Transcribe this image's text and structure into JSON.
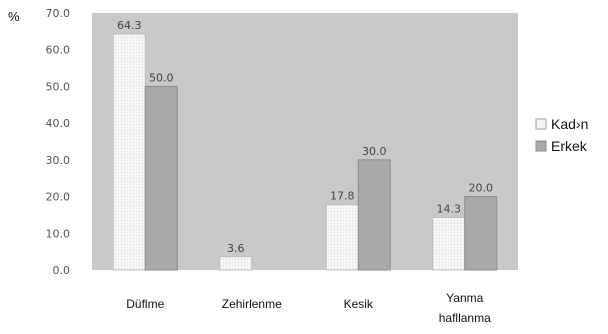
{
  "chart_data": {
    "type": "bar",
    "unit_label": "%",
    "categories": [
      "Düflme",
      "Zehirlenme",
      "Kesik",
      "Yanma\nhafllanma"
    ],
    "series": [
      {
        "name": "Kad›n",
        "values": [
          64.3,
          3.6,
          17.8,
          14.3
        ],
        "color": "#f4f4f4",
        "pattern": "dots"
      },
      {
        "name": "Erkek",
        "values": [
          50.0,
          null,
          30.0,
          20.0
        ],
        "color": "#a9a9a9",
        "pattern": "solid"
      }
    ],
    "data_labels": [
      [
        "64.3",
        "3.6",
        "17.8",
        "14.3"
      ],
      [
        "50.0",
        null,
        "30.0",
        "20.0"
      ]
    ],
    "ylim": [
      0,
      70
    ],
    "yticks": [
      0,
      10,
      20,
      30,
      40,
      50,
      60,
      70
    ],
    "ytick_labels": [
      "0.0",
      "10.0",
      "20.0",
      "30.0",
      "40.0",
      "50.0",
      "60.0",
      "70.0"
    ],
    "plot_background": "#c9c9c9",
    "grid": false,
    "legend_position": "right"
  }
}
